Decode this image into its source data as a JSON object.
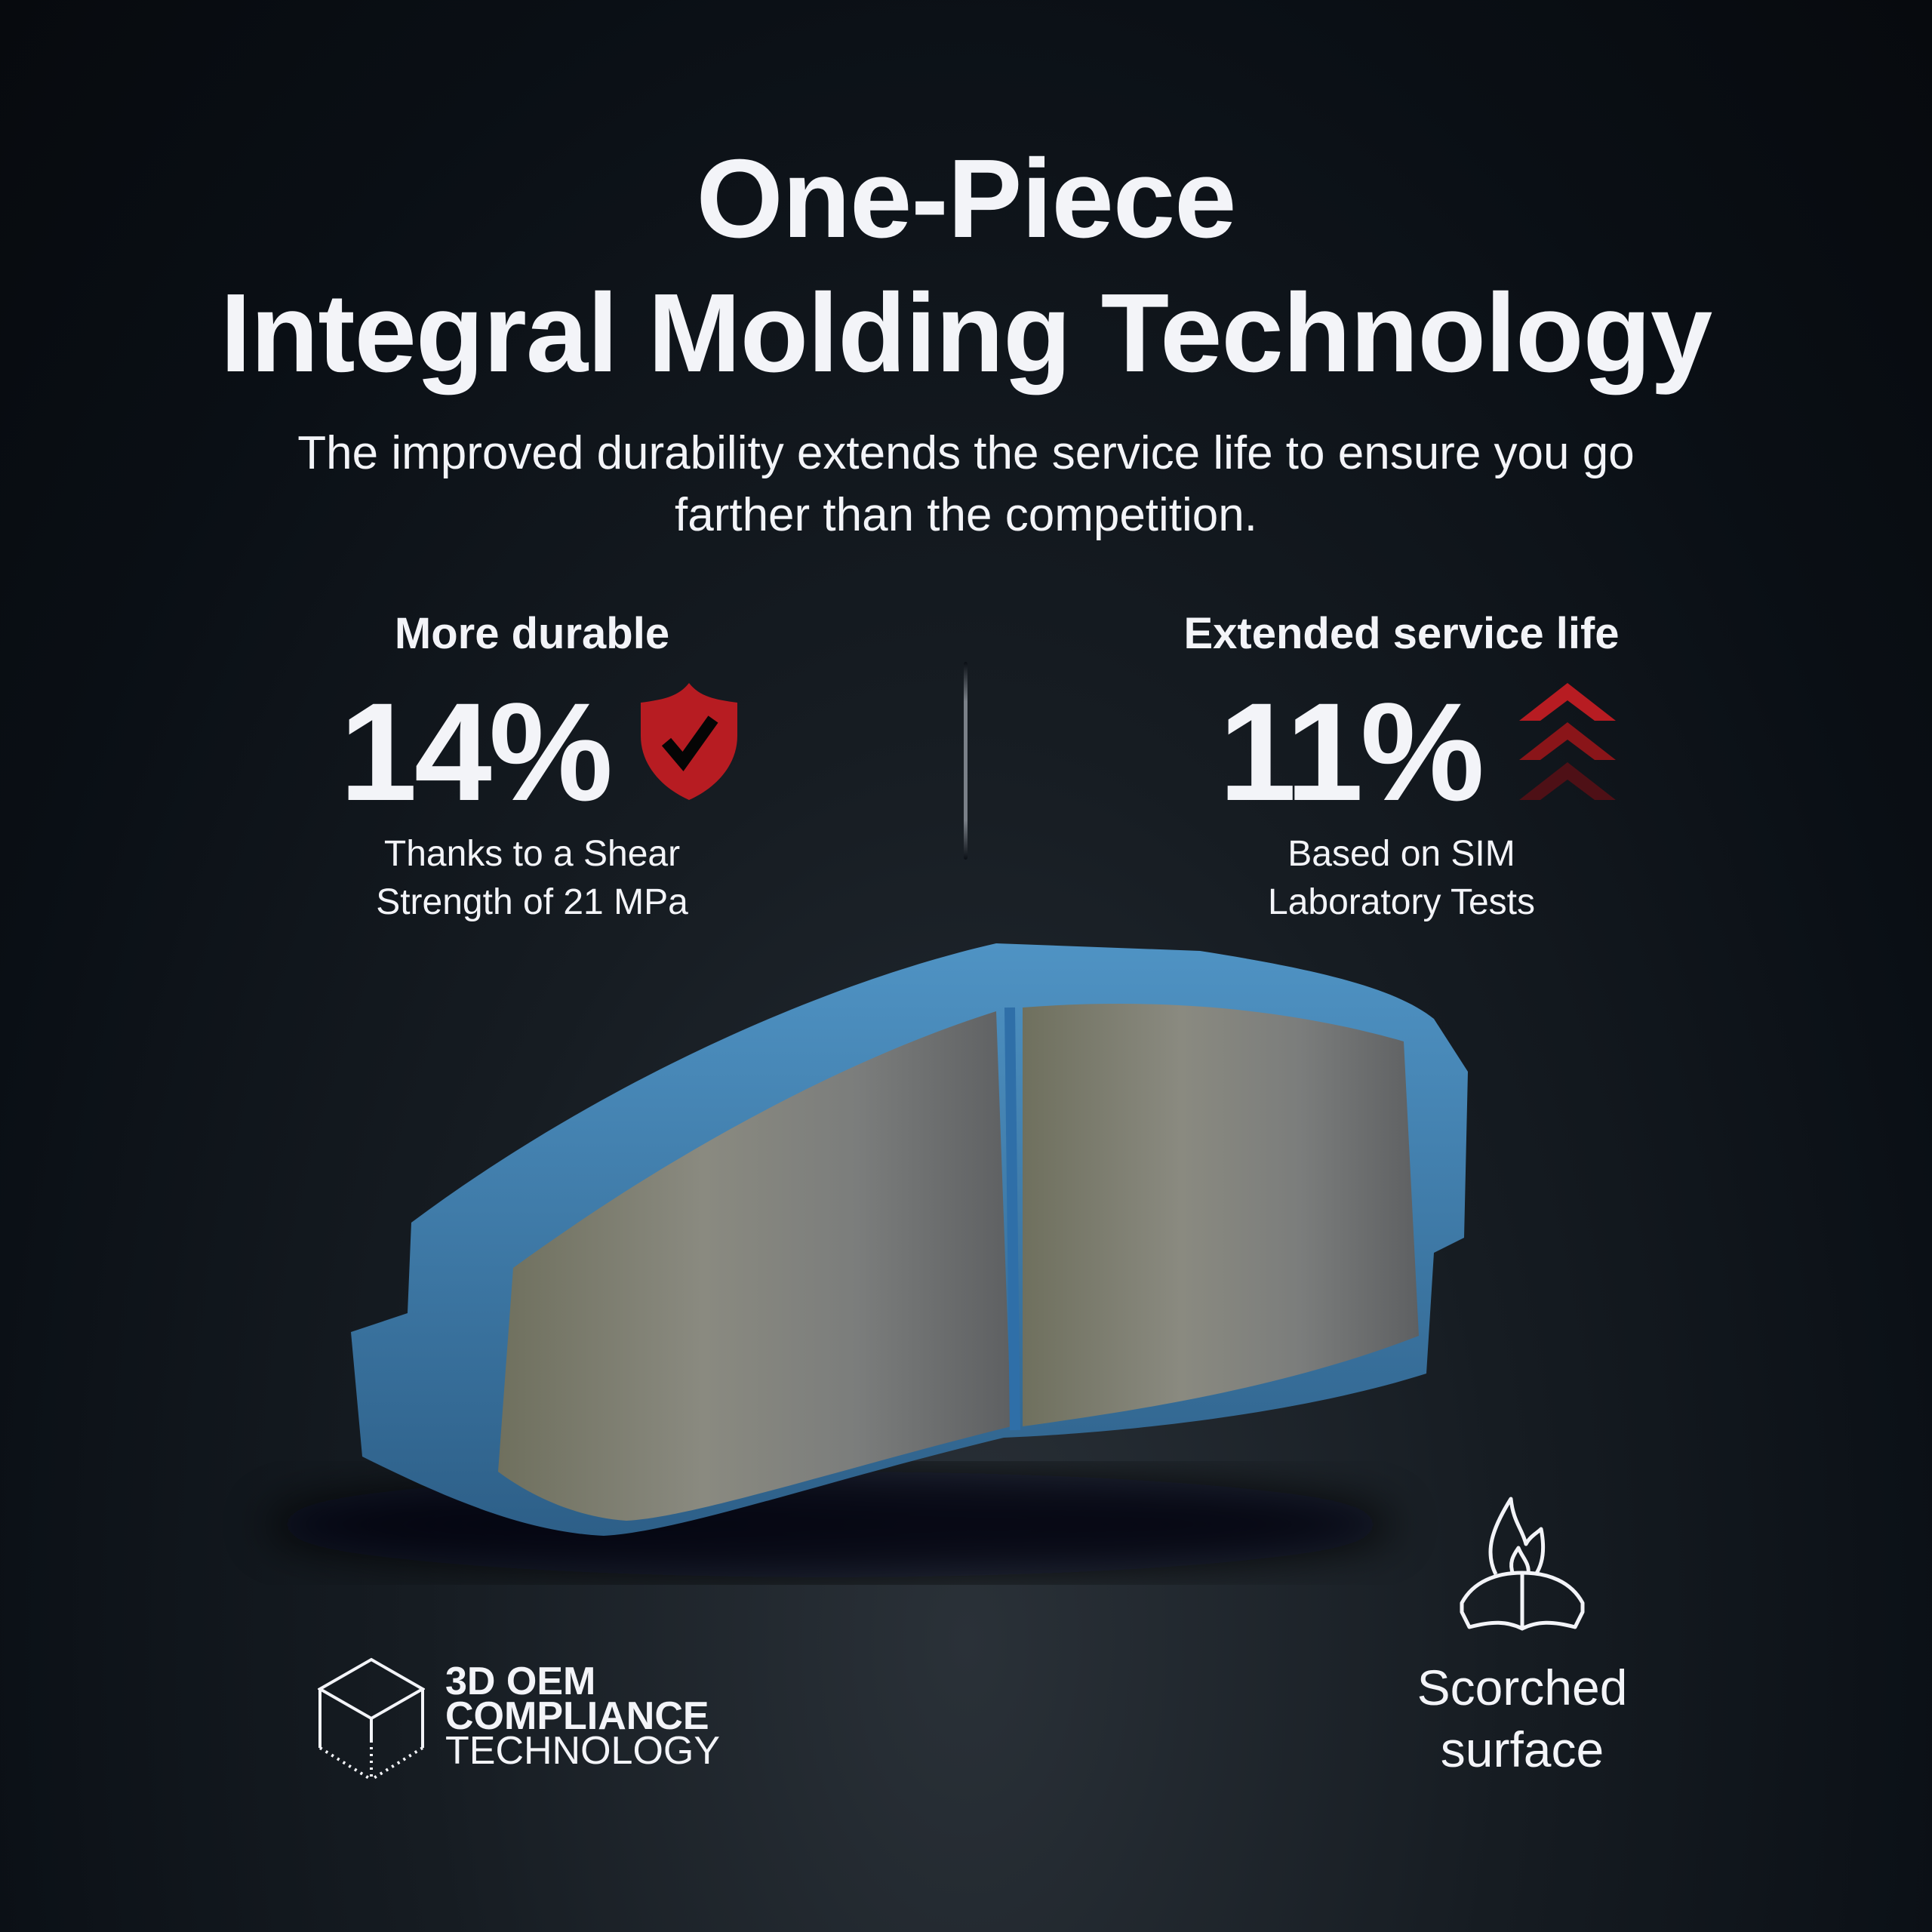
{
  "header": {
    "title_line1": "One-Piece",
    "title_line2": "Integral Molding Technology",
    "subtitle_line1": "The improved durability extends the service life to ensure you go",
    "subtitle_line2": "farther than the competition."
  },
  "stats": [
    {
      "heading": "More durable",
      "value": "14%",
      "icon": "shield-check-icon",
      "caption_line1": "Thanks to a Shear",
      "caption_line2": "Strength of 21 MPa"
    },
    {
      "heading": "Extended service life",
      "value": "11%",
      "icon": "triple-chevron-up-icon",
      "caption_line1": "Based on SIM",
      "caption_line2": "Laboratory Tests"
    }
  ],
  "features": [
    {
      "icon": "3d-cube-icon",
      "line1": "3D OEM",
      "line2": "COMPLIANCE",
      "line3": "TECHNOLOGY"
    },
    {
      "icon": "flame-brake-pad-icon",
      "line1": "Scorched",
      "line2": "surface"
    }
  ],
  "colors": {
    "accent_red": "#b71c22",
    "accent_dark_red": "#8a1519",
    "accent_darkest_red": "#4e1016",
    "text": "#f3f4f8",
    "background": "#0a0f15",
    "pad_edge_blue": "#3a7fb5"
  }
}
